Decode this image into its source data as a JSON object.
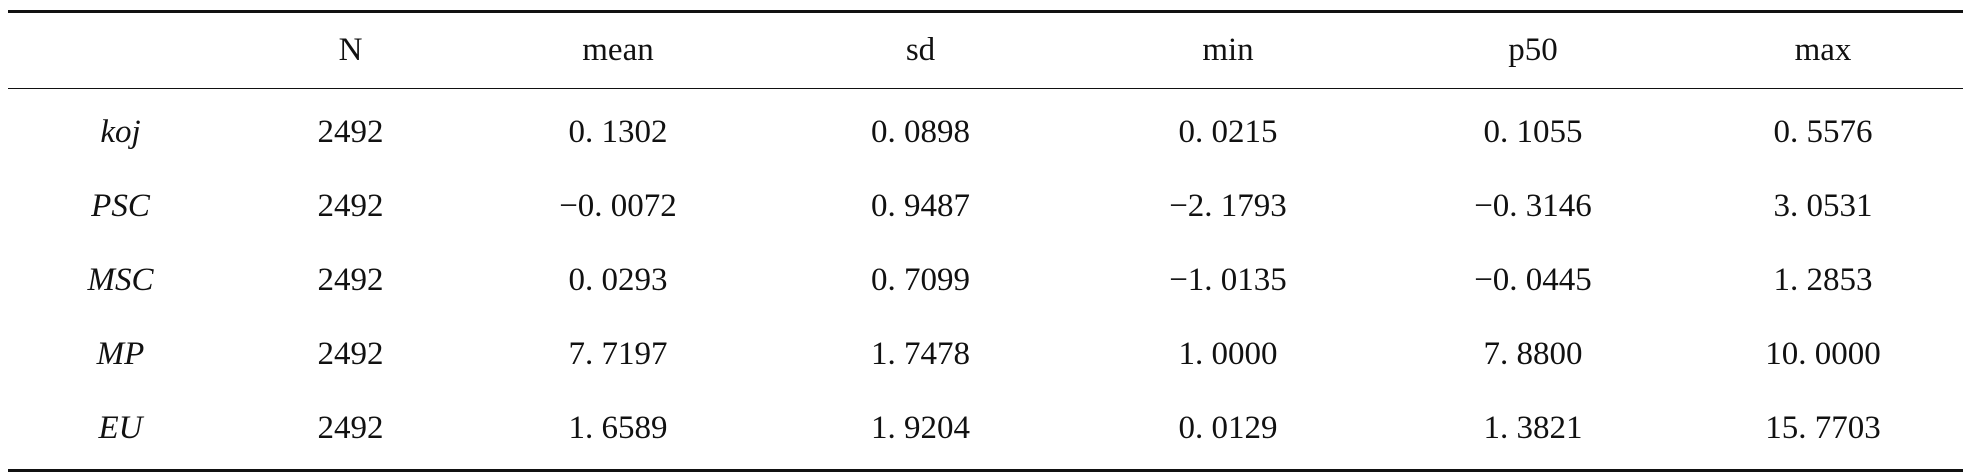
{
  "table": {
    "columns": [
      "",
      "N",
      "mean",
      "sd",
      "min",
      "p50",
      "max"
    ],
    "rows": [
      {
        "name": "koj",
        "values": [
          "2492",
          "0. 1302",
          "0. 0898",
          "0. 0215",
          "0. 1055",
          "0. 5576"
        ]
      },
      {
        "name": "PSC",
        "values": [
          "2492",
          "−0. 0072",
          "0. 9487",
          "−2. 1793",
          "−0. 3146",
          "3. 0531"
        ]
      },
      {
        "name": "MSC",
        "values": [
          "2492",
          "0. 0293",
          "0. 7099",
          "−1. 0135",
          "−0. 0445",
          "1. 2853"
        ]
      },
      {
        "name": "MP",
        "values": [
          "2492",
          "7. 7197",
          "1. 7478",
          "1. 0000",
          "7. 8800",
          "10. 0000"
        ]
      },
      {
        "name": "EU",
        "values": [
          "2492",
          "1. 6589",
          "1. 9204",
          "0. 0129",
          "1. 3821",
          "15. 7703"
        ]
      }
    ]
  }
}
